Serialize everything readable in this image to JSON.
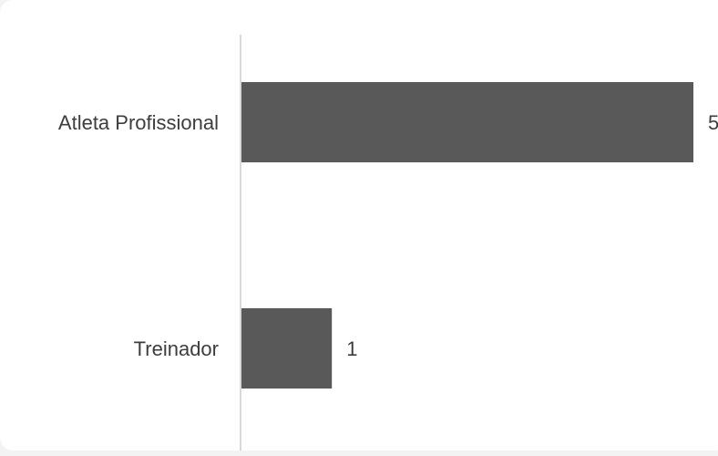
{
  "chart_data": {
    "type": "bar",
    "orientation": "horizontal",
    "categories": [
      "Atleta Profissional",
      "Treinador"
    ],
    "values": [
      5,
      1
    ],
    "data_labels": [
      "5",
      "1"
    ],
    "bar_color": "#595959",
    "axis_line_color": "#d9d9d9",
    "text_color": "#3d3d3d",
    "xlim": [
      0,
      5
    ],
    "grid": false,
    "legend": "none"
  }
}
